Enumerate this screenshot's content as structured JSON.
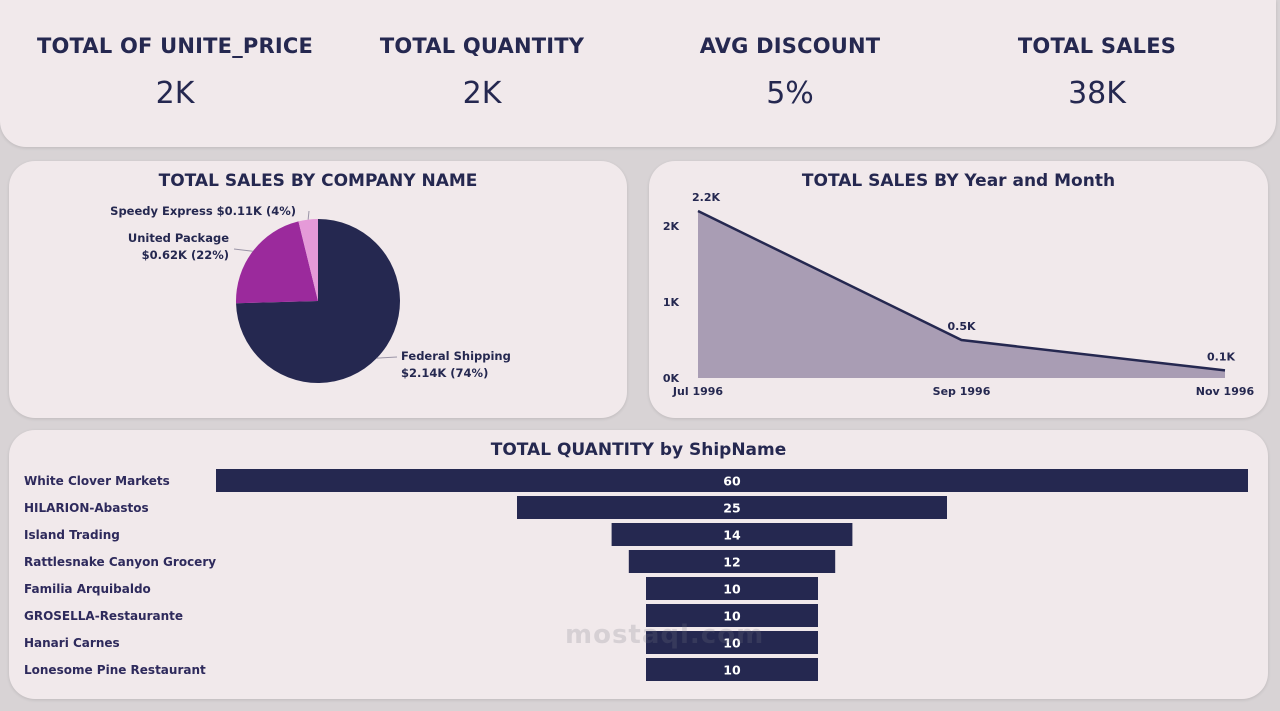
{
  "kpis": [
    {
      "label": "TOTAL OF UNITE_PRICE",
      "value": "2K"
    },
    {
      "label": "TOTAL QUANTITY",
      "value": "2K"
    },
    {
      "label": "AVG DISCOUNT",
      "value": "5%"
    },
    {
      "label": "TOTAL SALES",
      "value": "38K"
    }
  ],
  "watermark": "mostaql.com",
  "colors": {
    "navy": "#252850",
    "purple": "#9b2a9c",
    "pink": "#e59ad8",
    "area": "#a99db4",
    "card": "#f1e9eb"
  },
  "chart_data": [
    {
      "type": "pie",
      "title": "TOTAL SALES BY COMPANY NAME",
      "slices": [
        {
          "name": "Federal Shipping",
          "value": 2.14,
          "percent": 74,
          "label_line1": "Federal Shipping",
          "label_line2": "$2.14K (74%)",
          "color": "#252850"
        },
        {
          "name": "United Package",
          "value": 0.62,
          "percent": 22,
          "label_line1": "United Package",
          "label_line2": "$0.62K (22%)",
          "color": "#9b2a9c"
        },
        {
          "name": "Speedy Express",
          "value": 0.11,
          "percent": 4,
          "label_line1": "Speedy Express $0.11K (4%)",
          "label_line2": "",
          "color": "#e59ad8"
        }
      ]
    },
    {
      "type": "area",
      "title": "TOTAL SALES BY Year and Month",
      "x": [
        "Jul 1996",
        "Sep 1996",
        "Nov 1996"
      ],
      "values": [
        2200,
        500,
        100
      ],
      "data_labels": [
        "2.2K",
        "0.5K",
        "0.1K"
      ],
      "y_ticks": [
        {
          "value": 0,
          "label": "0K"
        },
        {
          "value": 1000,
          "label": "1K"
        },
        {
          "value": 2000,
          "label": "2K"
        }
      ],
      "ylim": [
        0,
        2200
      ]
    },
    {
      "type": "bar",
      "title": "TOTAL QUANTITY by ShipName",
      "categories": [
        "White Clover Markets",
        "HILARION-Abastos",
        "Island Trading",
        "Rattlesnake Canyon Grocery",
        "Familia Arquibaldo",
        "GROSELLA-Restaurante",
        "Hanari Carnes",
        "Lonesome Pine Restaurant"
      ],
      "values": [
        60,
        25,
        14,
        12,
        10,
        10,
        10,
        10
      ]
    }
  ]
}
